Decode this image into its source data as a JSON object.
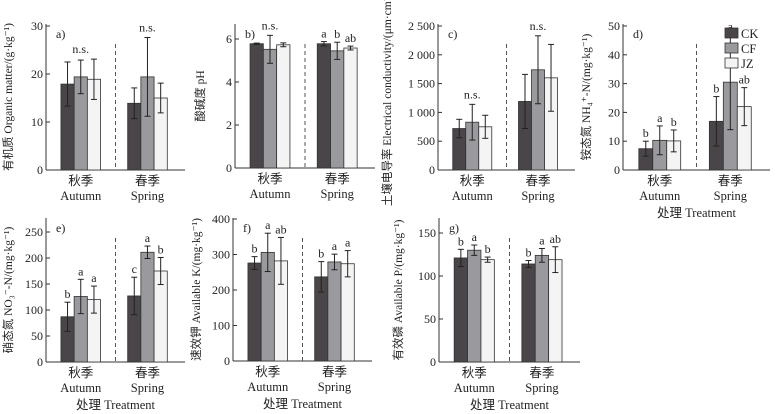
{
  "figure": {
    "colors": {
      "CK": "#4a4548",
      "CF": "#9a9a9e",
      "JZ": "#f4f4f4",
      "axis": "#333333",
      "text": "#222222"
    },
    "legend": [
      "CK",
      "CF",
      "JZ"
    ],
    "categories": [
      {
        "cn": "秋季",
        "en": "Autumn"
      },
      {
        "cn": "春季",
        "en": "Spring"
      }
    ],
    "xlabel": "处理 Treatment"
  },
  "chart_data": [
    {
      "id": "a",
      "panel_label": "a)",
      "type": "bar",
      "ylabel": "有机质 Organic matter/(g·kg⁻¹)",
      "ylim": [
        0,
        30
      ],
      "yticks": [
        0,
        10,
        20,
        30
      ],
      "ytick_labels": [
        "0",
        "10",
        "20",
        "30"
      ],
      "categories": [
        "秋季 Autumn",
        "春季 Spring"
      ],
      "series": [
        {
          "name": "CK",
          "values": [
            17.9,
            13.9
          ],
          "err": [
            4.6,
            3.2
          ]
        },
        {
          "name": "CF",
          "values": [
            19.4,
            19.4
          ],
          "err": [
            3.5,
            8.2
          ]
        },
        {
          "name": "JZ",
          "values": [
            18.9,
            15.0
          ],
          "err": [
            4.2,
            3.1
          ]
        }
      ],
      "group_labels": [
        "n.s.",
        "n.s."
      ],
      "sig_labels": [
        [
          "",
          "",
          ""
        ],
        [
          "",
          "",
          ""
        ]
      ],
      "show_xtitle": false
    },
    {
      "id": "b",
      "panel_label": "b)",
      "type": "bar",
      "ylabel": "酸碱度 pH",
      "ylim": [
        0,
        6.5
      ],
      "yticks": [
        0,
        2,
        4,
        6
      ],
      "ytick_labels": [
        "0",
        "2",
        "4",
        "6"
      ],
      "categories": [
        "秋季 Autumn",
        "春季 Spring"
      ],
      "series": [
        {
          "name": "CK",
          "values": [
            5.78,
            5.78
          ],
          "err": [
            0.03,
            0.1
          ]
        },
        {
          "name": "CF",
          "values": [
            5.52,
            5.45
          ],
          "err": [
            0.65,
            0.4
          ]
        },
        {
          "name": "JZ",
          "values": [
            5.73,
            5.58
          ],
          "err": [
            0.09,
            0.09
          ]
        }
      ],
      "group_labels": [
        "n.s.",
        ""
      ],
      "sig_labels": [
        [
          "",
          "",
          ""
        ],
        [
          "a",
          "b",
          "ab"
        ]
      ],
      "show_xtitle": false
    },
    {
      "id": "c",
      "panel_label": "c)",
      "type": "bar",
      "ylabel": "土壤电导率 Electrical conductivity/(μm·cm⁻¹)",
      "ylim": [
        0,
        2500
      ],
      "yticks": [
        0,
        500,
        1000,
        1500,
        2000,
        2500
      ],
      "ytick_labels": [
        "0",
        "500",
        "1 000",
        "1 500",
        "2 000",
        "2 500"
      ],
      "categories": [
        "秋季 Autumn",
        "春季 Spring"
      ],
      "series": [
        {
          "name": "CK",
          "values": [
            720,
            1190
          ],
          "err": [
            160,
            470
          ]
        },
        {
          "name": "CF",
          "values": [
            830,
            1740
          ],
          "err": [
            310,
            590
          ]
        },
        {
          "name": "JZ",
          "values": [
            750,
            1600
          ],
          "err": [
            200,
            580
          ]
        }
      ],
      "group_labels": [
        "n.s.",
        "n.s."
      ],
      "sig_labels": [
        [
          "",
          "",
          ""
        ],
        [
          "",
          "",
          ""
        ]
      ],
      "show_xtitle": false
    },
    {
      "id": "d",
      "panel_label": "d)",
      "type": "bar",
      "ylabel": "铵态氮 NH₄⁺-N/(mg·kg⁻¹)",
      "ylim": [
        0,
        50
      ],
      "yticks": [
        0,
        10,
        20,
        30,
        40,
        50
      ],
      "ytick_labels": [
        "0",
        "10",
        "20",
        "30",
        "40",
        "50"
      ],
      "categories": [
        "秋季 Autumn",
        "春季 Spring"
      ],
      "series": [
        {
          "name": "CK",
          "values": [
            7.4,
            16.9
          ],
          "err": [
            2.6,
            8.6
          ]
        },
        {
          "name": "CF",
          "values": [
            10.3,
            30.5
          ],
          "err": [
            5.0,
            16.5
          ]
        },
        {
          "name": "JZ",
          "values": [
            10.1,
            22.0
          ],
          "err": [
            3.8,
            6.6
          ]
        }
      ],
      "group_labels": [
        "",
        ""
      ],
      "sig_labels": [
        [
          "b",
          "a",
          "b"
        ],
        [
          "b",
          "a",
          "ab"
        ]
      ],
      "show_xtitle": true,
      "legend": "top-right"
    },
    {
      "id": "e",
      "panel_label": "e)",
      "type": "bar",
      "ylabel": "硝态氮 NO₃⁻-N/(mg·kg⁻¹)",
      "ylim": [
        0,
        270
      ],
      "yticks": [
        0,
        50,
        100,
        150,
        200,
        250
      ],
      "ytick_labels": [
        "0",
        "50",
        "100",
        "150",
        "200",
        "250"
      ],
      "categories": [
        "秋季 Autumn",
        "春季 Spring"
      ],
      "series": [
        {
          "name": "CK",
          "values": [
            87,
            127
          ],
          "err": [
            28,
            36
          ]
        },
        {
          "name": "CF",
          "values": [
            126,
            211
          ],
          "err": [
            33,
            12
          ]
        },
        {
          "name": "JZ",
          "values": [
            120,
            175
          ],
          "err": [
            26,
            26
          ]
        }
      ],
      "group_labels": [
        "",
        ""
      ],
      "sig_labels": [
        [
          "b",
          "a",
          "a"
        ],
        [
          "c",
          "a",
          "b"
        ]
      ],
      "show_xtitle": true
    },
    {
      "id": "f",
      "panel_label": "f)",
      "type": "bar",
      "ylabel": "速效钾 Available K/(mg·kg⁻¹)",
      "ylim": [
        0,
        400
      ],
      "yticks": [
        0,
        100,
        200,
        300,
        400
      ],
      "ytick_labels": [
        "0",
        "100",
        "200",
        "300",
        "400"
      ],
      "categories": [
        "秋季 Autumn",
        "春季 Spring"
      ],
      "series": [
        {
          "name": "CK",
          "values": [
            276,
            237
          ],
          "err": [
            18,
            43
          ]
        },
        {
          "name": "CF",
          "values": [
            306,
            279
          ],
          "err": [
            54,
            22
          ]
        },
        {
          "name": "JZ",
          "values": [
            282,
            274
          ],
          "err": [
            66,
            37
          ]
        }
      ],
      "group_labels": [
        "",
        ""
      ],
      "sig_labels": [
        [
          "b",
          "a",
          "ab"
        ],
        [
          "b",
          "a",
          "a"
        ]
      ],
      "show_xtitle": true
    },
    {
      "id": "g",
      "panel_label": "g)",
      "type": "bar",
      "ylabel": "有效磷 Available P/(mg·kg⁻¹)",
      "ylim": [
        0,
        160
      ],
      "yticks": [
        0,
        50,
        100,
        150
      ],
      "ytick_labels": [
        "0",
        "50",
        "100",
        "150"
      ],
      "categories": [
        "秋季 Autumn",
        "春季 Spring"
      ],
      "series": [
        {
          "name": "CK",
          "values": [
            121,
            114
          ],
          "err": [
            10,
            4
          ]
        },
        {
          "name": "CF",
          "values": [
            130,
            124
          ],
          "err": [
            6,
            8
          ]
        },
        {
          "name": "JZ",
          "values": [
            119,
            119
          ],
          "err": [
            3,
            15
          ]
        }
      ],
      "group_labels": [
        "",
        ""
      ],
      "sig_labels": [
        [
          "b",
          "a",
          "b"
        ],
        [
          "b",
          "a",
          "ab"
        ]
      ],
      "show_xtitle": true
    }
  ]
}
